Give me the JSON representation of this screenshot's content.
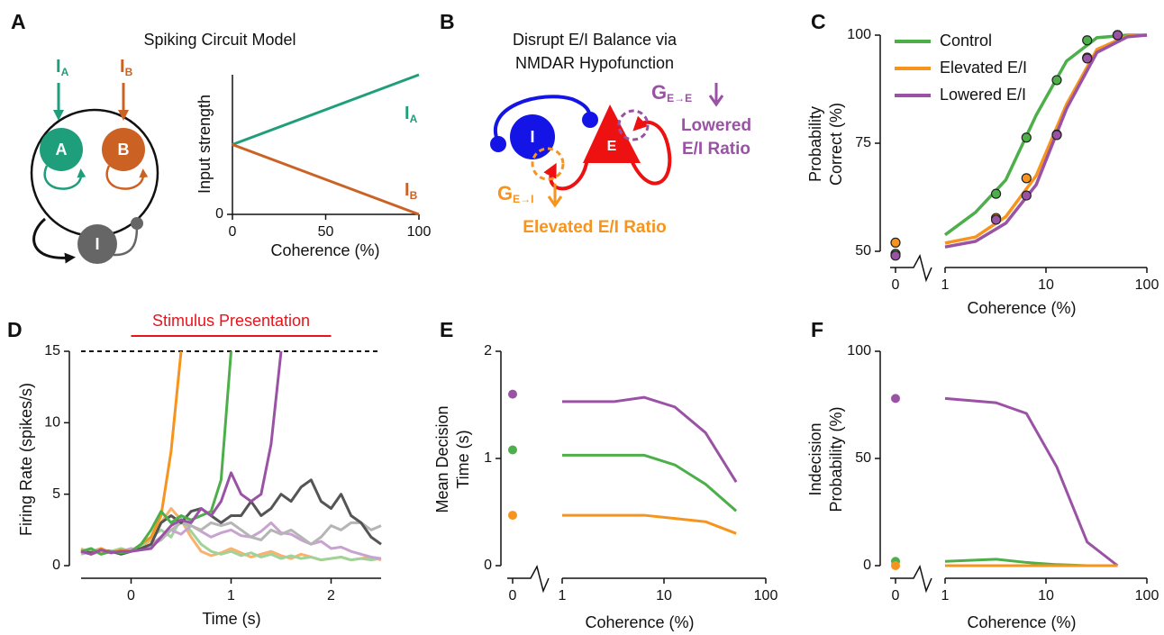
{
  "diagrams": {
    "a": {
      "letter": "A",
      "title": "Spiking Circuit Model",
      "inputs": [
        {
          "name": "I",
          "subscript": "A"
        },
        {
          "name": "I",
          "subscript": "B"
        }
      ],
      "nodes": [
        "A",
        "B",
        "I"
      ]
    },
    "b": {
      "letter": "B",
      "title": [
        "Disrupt E/I Balance via",
        "NMDAR Hypofunction"
      ],
      "nodes": [
        "I",
        "E"
      ],
      "conductances": [
        {
          "name": "G",
          "subscript": "E→E",
          "change": [
            "Lowered",
            "E/I Ratio"
          ]
        },
        {
          "name": "G",
          "subscript": "E→I",
          "change": [
            "Elevated E/I Ratio"
          ]
        }
      ]
    }
  },
  "chart_data": [
    {
      "type": "line",
      "x": [
        0,
        100
      ],
      "xlim": [
        0,
        100
      ],
      "xticks": [
        0,
        50,
        100
      ],
      "ylim": [
        0,
        1
      ],
      "yticks": [
        0
      ],
      "xlabel": "Coherence (%)",
      "ylabel": "Input strength",
      "series": [
        {
          "name": "I",
          "subscript": "A",
          "color": "#1f9e7b",
          "values": [
            0.5,
            1
          ]
        },
        {
          "name": "I",
          "subscript": "B",
          "color": "#cc6124",
          "values": [
            0.5,
            0
          ]
        }
      ]
    },
    {
      "type": "line",
      "panel": "C",
      "log_x": true,
      "x_break": true,
      "x": [
        0,
        3.2,
        6.4,
        12.8,
        25.6,
        51.2
      ],
      "xlim": [
        1,
        100
      ],
      "xticks": [
        0,
        1,
        10,
        100
      ],
      "ylim": [
        50,
        100
      ],
      "yticks": [
        50,
        75,
        100
      ],
      "xlabel": "Coherence (%)",
      "ylabel": [
        "Probability",
        "Correct (%)"
      ],
      "legend": "upper left",
      "marker_edge": "#222222",
      "fit_x": [
        1,
        2,
        4,
        8,
        16,
        32,
        64,
        100
      ],
      "series": [
        {
          "name": "Control",
          "color": "#4daf4a",
          "values": [
            49.4,
            63.3,
            76.3,
            89.6,
            98.8,
            100
          ],
          "fit": [
            53.8,
            59,
            66.5,
            81.5,
            94,
            99.4,
            100,
            100
          ]
        },
        {
          "name": "Elevated E/I",
          "color": "#f7941d",
          "values": [
            52,
            57.7,
            66.9,
            77,
            94.8,
            100
          ],
          "fit": [
            51.9,
            53.3,
            58,
            67.5,
            84,
            96.7,
            99.8,
            100
          ]
        },
        {
          "name": "Lowered E/I",
          "color": "#9a52a5",
          "values": [
            49,
            57.3,
            62.9,
            76.9,
            94.6,
            100
          ],
          "fit": [
            51,
            52.3,
            56.5,
            65.4,
            83,
            96,
            99.6,
            100
          ]
        }
      ]
    },
    {
      "type": "line",
      "panel": "D",
      "x": [
        -0.5,
        -0.4,
        -0.3,
        -0.2,
        -0.1,
        0,
        0.1,
        0.2,
        0.3,
        0.4,
        0.5,
        0.6,
        0.7,
        0.8,
        0.9,
        1,
        1.1,
        1.2,
        1.3,
        1.4,
        1.5,
        1.6,
        1.7,
        1.8,
        1.9,
        2,
        2.1,
        2.2,
        2.3,
        2.4,
        2.5
      ],
      "xlim": [
        -0.5,
        2.5
      ],
      "xticks": [
        0,
        1,
        2
      ],
      "ylim": [
        0,
        15
      ],
      "yticks": [
        0,
        5,
        10,
        15
      ],
      "xlabel": "Time (s)",
      "ylabel": "Firing Rate (spikes/s)",
      "threshold": 15,
      "stimulus": {
        "label": "Stimulus Presentation",
        "start": 0,
        "end": 2,
        "color": "#e8141b"
      },
      "series": [
        {
          "color": "#fbb06c",
          "values": [
            1.2,
            0.8,
            1,
            0.9,
            1.1,
            1,
            1.3,
            1.8,
            3,
            4,
            3.2,
            2,
            1,
            0.7,
            0.9,
            1.2,
            0.9,
            0.6,
            0.8,
            1,
            0.7,
            0.5,
            0.8,
            0.6,
            0.4,
            0.5,
            0.6,
            0.4,
            0.5,
            0.6,
            0.4
          ]
        },
        {
          "color": "#9fd39a",
          "values": [
            0.9,
            1.1,
            0.8,
            1,
            1.2,
            1,
            1.3,
            2,
            2.5,
            2,
            3.3,
            2.4,
            1.5,
            1,
            0.8,
            1,
            0.7,
            0.9,
            0.6,
            0.8,
            0.5,
            0.7,
            0.5,
            0.6,
            0.4,
            0.5,
            0.6,
            0.4,
            0.5,
            0.4,
            0.5
          ]
        },
        {
          "color": "#c9a3d0",
          "values": [
            1,
            0.8,
            1.1,
            0.9,
            1,
            1.2,
            1.1,
            1.5,
            2,
            2.5,
            2.2,
            2.8,
            2.4,
            2,
            2.3,
            2.5,
            2.1,
            2,
            2.4,
            3,
            2.3,
            2.2,
            1.8,
            1.5,
            1.7,
            1.2,
            1.3,
            1,
            0.8,
            0.6,
            0.5
          ]
        },
        {
          "color": "#b5b5b5",
          "values": [
            0.8,
            1,
            1.2,
            0.9,
            1,
            1.1,
            1.2,
            1.4,
            1.8,
            2.5,
            3,
            2.8,
            2.5,
            3,
            2.8,
            3,
            2.5,
            2,
            1.8,
            2.5,
            2.2,
            2.5,
            2,
            1.5,
            2,
            2.8,
            2.5,
            3,
            3,
            2.5,
            2.8
          ]
        },
        {
          "color": "#555555",
          "values": [
            1,
            0.9,
            1.1,
            1,
            0.8,
            1,
            1.2,
            1.5,
            3,
            3.5,
            3,
            3.8,
            4,
            3.5,
            3,
            3.5,
            3.5,
            4.5,
            3.5,
            4,
            5,
            4.5,
            5.5,
            6,
            4.5,
            4,
            5,
            3.5,
            3,
            2,
            1.5
          ]
        },
        {
          "color": "#f7941d",
          "values": [
            1,
            0.8,
            1.2,
            0.9,
            1.1,
            1,
            1.5,
            2,
            3.5,
            8,
            15,
            null,
            null,
            null,
            null,
            null,
            null,
            null,
            null,
            null,
            null,
            null,
            null,
            null,
            null,
            null,
            null,
            null,
            null,
            null,
            null
          ]
        },
        {
          "color": "#4daf4a",
          "values": [
            1,
            1.2,
            0.8,
            1,
            0.9,
            1,
            1.5,
            2.5,
            3.8,
            3,
            3.5,
            3.2,
            3.5,
            3.8,
            6,
            15,
            null,
            null,
            null,
            null,
            null,
            null,
            null,
            null,
            null,
            null,
            null,
            null,
            null,
            null,
            null
          ]
        },
        {
          "color": "#9a52a5",
          "values": [
            1,
            0.8,
            1.1,
            0.9,
            1,
            1,
            1.1,
            1.2,
            2,
            2.8,
            3.2,
            3,
            4,
            3.5,
            4.5,
            6.5,
            5,
            4.5,
            5,
            8.5,
            15,
            null,
            null,
            null,
            null,
            null,
            null,
            null,
            null,
            null,
            null
          ]
        }
      ]
    },
    {
      "type": "line",
      "panel": "E",
      "log_x": true,
      "x_break": true,
      "x": [
        0,
        1,
        3.2,
        6.4,
        12.8,
        25.6,
        51.2
      ],
      "xlim": [
        1,
        100
      ],
      "xticks": [
        0,
        1,
        10,
        100
      ],
      "ylim": [
        0,
        2
      ],
      "yticks": [
        0,
        1,
        2
      ],
      "xlabel": "Coherence (%)",
      "ylabel": [
        "Mean Decision",
        "Time (s)"
      ],
      "series": [
        {
          "color": "#9a52a5",
          "values": [
            1.6,
            1.53,
            1.53,
            1.57,
            1.48,
            1.24,
            0.78
          ]
        },
        {
          "color": "#4daf4a",
          "values": [
            1.08,
            1.03,
            1.03,
            1.03,
            0.94,
            0.76,
            0.51
          ]
        },
        {
          "color": "#f7941d",
          "values": [
            0.47,
            0.47,
            0.47,
            0.47,
            0.44,
            0.41,
            0.3
          ]
        }
      ]
    },
    {
      "type": "line",
      "panel": "F",
      "log_x": true,
      "x_break": true,
      "x": [
        0,
        1,
        3.2,
        6.4,
        12.8,
        25.6,
        51.2
      ],
      "xlim": [
        1,
        100
      ],
      "xticks": [
        0,
        1,
        10,
        100
      ],
      "ylim": [
        0,
        100
      ],
      "yticks": [
        0,
        50,
        100
      ],
      "xlabel": "Coherence (%)",
      "ylabel": [
        "Indecision",
        "Probability (%)"
      ],
      "series": [
        {
          "color": "#9a52a5",
          "values": [
            78,
            78,
            76,
            71,
            46,
            11,
            0
          ]
        },
        {
          "color": "#4daf4a",
          "values": [
            2,
            2,
            3,
            1.5,
            0.5,
            0,
            0
          ]
        },
        {
          "color": "#f7941d",
          "values": [
            0,
            0,
            0,
            0,
            0,
            0,
            0
          ]
        }
      ]
    }
  ]
}
